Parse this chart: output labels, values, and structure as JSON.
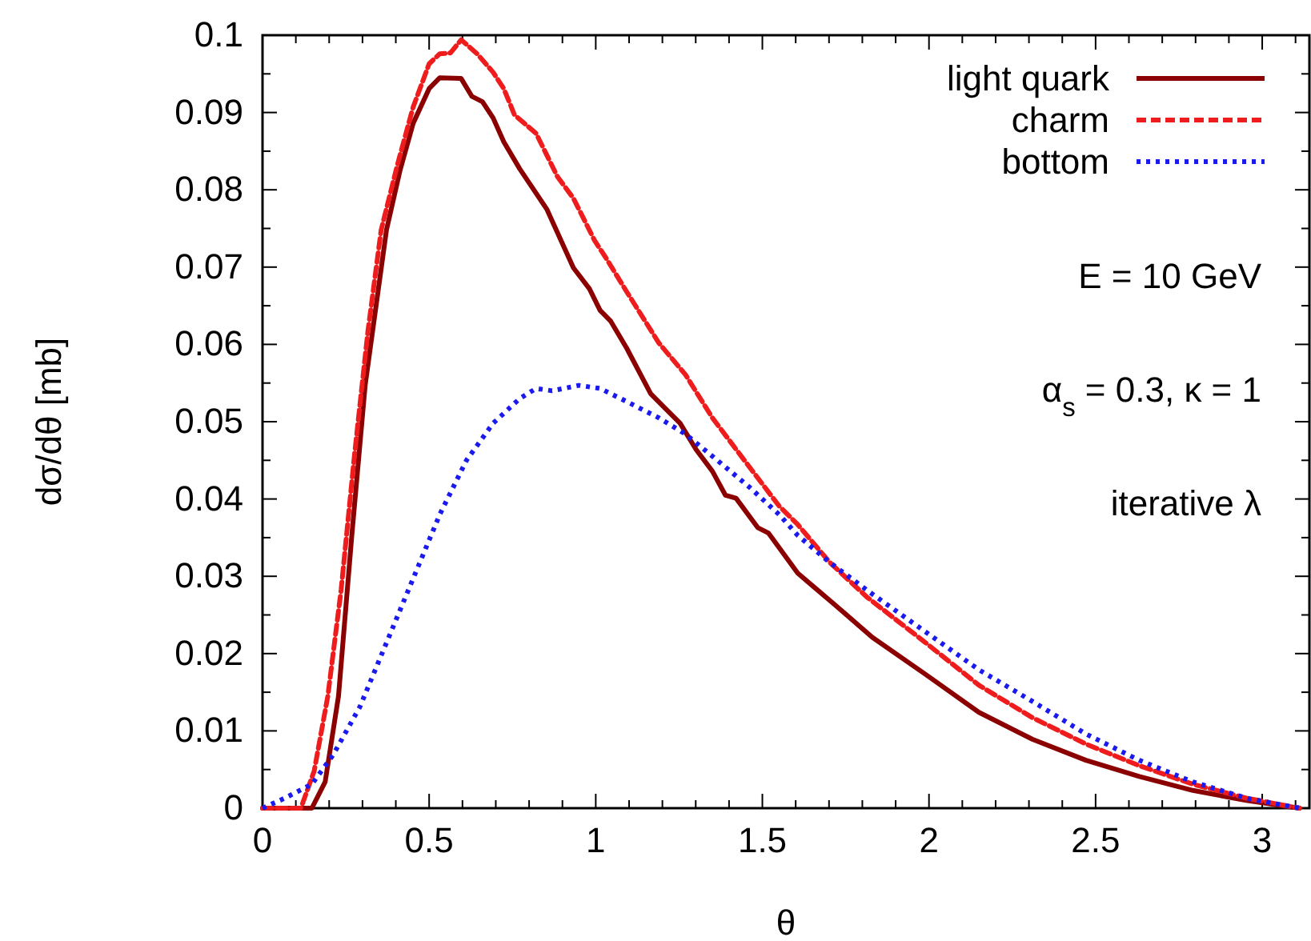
{
  "chart_data": {
    "type": "line",
    "xlabel": "θ",
    "ylabel": "dσ/dθ [mb]",
    "xlim": [
      0,
      3.1416
    ],
    "ylim": [
      0,
      0.1
    ],
    "xticks": [
      0,
      {
        "value": 0.1,
        "label": null
      },
      {
        "value": 0.2,
        "label": null
      },
      {
        "value": 0.3,
        "label": null
      },
      {
        "value": 0.4,
        "label": null
      },
      0.5,
      {
        "value": 0.6,
        "label": null
      },
      {
        "value": 0.7,
        "label": null
      },
      {
        "value": 0.8,
        "label": null
      },
      {
        "value": 0.9,
        "label": null
      },
      1,
      {
        "value": 1.1,
        "label": null
      },
      {
        "value": 1.2,
        "label": null
      },
      {
        "value": 1.3,
        "label": null
      },
      {
        "value": 1.4,
        "label": null
      },
      1.5,
      {
        "value": 1.6,
        "label": null
      },
      {
        "value": 1.7,
        "label": null
      },
      {
        "value": 1.8,
        "label": null
      },
      {
        "value": 1.9,
        "label": null
      },
      2,
      {
        "value": 2.1,
        "label": null
      },
      {
        "value": 2.2,
        "label": null
      },
      {
        "value": 2.3,
        "label": null
      },
      {
        "value": 2.4,
        "label": null
      },
      2.5,
      {
        "value": 2.6,
        "label": null
      },
      {
        "value": 2.7,
        "label": null
      },
      {
        "value": 2.8,
        "label": null
      },
      {
        "value": 2.9,
        "label": null
      },
      3,
      {
        "value": 3.1,
        "label": null
      }
    ],
    "yticks": [
      0,
      {
        "value": 0.005,
        "label": null
      },
      0.01,
      {
        "value": 0.015,
        "label": null
      },
      0.02,
      {
        "value": 0.025,
        "label": null
      },
      0.03,
      {
        "value": 0.035,
        "label": null
      },
      0.04,
      {
        "value": 0.045,
        "label": null
      },
      0.05,
      {
        "value": 0.055,
        "label": null
      },
      0.06,
      {
        "value": 0.065,
        "label": null
      },
      0.07,
      {
        "value": 0.075,
        "label": null
      },
      0.08,
      {
        "value": 0.085,
        "label": null
      },
      0.09,
      {
        "value": 0.095,
        "label": null
      },
      0.1
    ],
    "grid": false,
    "legend": "top right",
    "marker": "none",
    "annotations": [
      "E = 10 GeV",
      "α$_{s}$ = 0.3, κ = 1",
      "iterative λ"
    ],
    "series": [
      {
        "name": "light quark",
        "color": "#8b0000",
        "line_style": "solid",
        "x": [
          0,
          0.148,
          0.188,
          0.228,
          0.268,
          0.308,
          0.372,
          0.412,
          0.452,
          0.5,
          0.532,
          0.596,
          0.628,
          0.66,
          0.692,
          0.724,
          0.772,
          0.853,
          0.933,
          0.981,
          1.013,
          1.045,
          1.093,
          1.165,
          1.253,
          1.301,
          1.35,
          1.389,
          1.421,
          1.486,
          1.518,
          1.606,
          1.718,
          1.83,
          1.99,
          2.15,
          2.311,
          2.471,
          2.631,
          2.792,
          2.952,
          3.112
        ],
        "values": [
          0,
          0,
          0.0034,
          0.0145,
          0.0353,
          0.0547,
          0.0748,
          0.0824,
          0.0886,
          0.0931,
          0.0945,
          0.0944,
          0.0921,
          0.0914,
          0.0893,
          0.0862,
          0.0827,
          0.0775,
          0.0699,
          0.0672,
          0.0644,
          0.063,
          0.0595,
          0.0536,
          0.0498,
          0.0464,
          0.0436,
          0.0405,
          0.0401,
          0.0363,
          0.0356,
          0.0304,
          0.0263,
          0.0221,
          0.0173,
          0.0124,
          0.0089,
          0.0062,
          0.0041,
          0.0023,
          0.001,
          0
        ]
      },
      {
        "name": "charm",
        "color": "#ee1c1c",
        "line_style": "dashed",
        "x": [
          0,
          0.115,
          0.155,
          0.196,
          0.236,
          0.276,
          0.316,
          0.356,
          0.404,
          0.452,
          0.5,
          0.532,
          0.564,
          0.596,
          0.644,
          0.692,
          0.724,
          0.756,
          0.821,
          0.885,
          0.933,
          0.997,
          1.029,
          1.093,
          1.189,
          1.269,
          1.35,
          1.446,
          1.55,
          1.606,
          1.702,
          1.814,
          1.99,
          2.15,
          2.311,
          2.471,
          2.631,
          2.792,
          2.952,
          3.112
        ],
        "values": [
          0,
          0,
          0.0048,
          0.0145,
          0.0283,
          0.0457,
          0.0616,
          0.0748,
          0.0831,
          0.0907,
          0.0963,
          0.0976,
          0.0977,
          0.0994,
          0.0976,
          0.0952,
          0.0931,
          0.0897,
          0.0873,
          0.0817,
          0.0789,
          0.0734,
          0.0713,
          0.0668,
          0.0602,
          0.0561,
          0.0505,
          0.045,
          0.0391,
          0.0367,
          0.0318,
          0.0273,
          0.0214,
          0.0159,
          0.0117,
          0.0083,
          0.0055,
          0.0031,
          0.0013,
          0
        ]
      },
      {
        "name": "bottom",
        "color": "#1a1aee",
        "line_style": "dotted",
        "x": [
          0,
          0.067,
          0.148,
          0.212,
          0.292,
          0.372,
          0.452,
          0.532,
          0.612,
          0.692,
          0.772,
          0.821,
          0.869,
          0.949,
          1.013,
          1.093,
          1.189,
          1.269,
          1.365,
          1.462,
          1.55,
          1.606,
          1.702,
          1.83,
          1.99,
          2.15,
          2.311,
          2.471,
          2.631,
          2.792,
          2.952,
          3.112
        ],
        "values": [
          0,
          0.0013,
          0.0031,
          0.0069,
          0.0131,
          0.0214,
          0.0297,
          0.038,
          0.045,
          0.0498,
          0.053,
          0.0543,
          0.054,
          0.0547,
          0.0543,
          0.0526,
          0.0505,
          0.0484,
          0.045,
          0.0415,
          0.038,
          0.0353,
          0.0318,
          0.0277,
          0.0228,
          0.0179,
          0.0138,
          0.0096,
          0.0062,
          0.0034,
          0.0013,
          0
        ]
      }
    ]
  }
}
